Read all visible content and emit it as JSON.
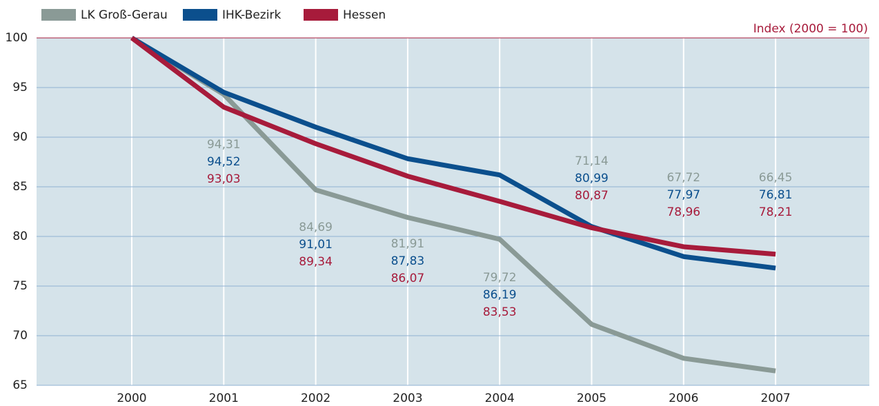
{
  "chart_data": {
    "type": "line",
    "annotation": "Index (2000 = 100)",
    "categories": [
      "2000",
      "2001",
      "2002",
      "2003",
      "2004",
      "2005",
      "2006",
      "2007"
    ],
    "series": [
      {
        "name": "LK Groß-Gerau",
        "color": "#8a9a96",
        "values": [
          100,
          94.31,
          84.69,
          81.91,
          79.72,
          71.14,
          67.72,
          66.45
        ],
        "value_labels": [
          null,
          "94,31",
          "84,69",
          "81,91",
          "79,72",
          "71,14",
          "67,72",
          "66,45"
        ]
      },
      {
        "name": "IHK-Bezirk",
        "color": "#0b4f8d",
        "values": [
          100,
          94.52,
          91.01,
          87.83,
          86.19,
          80.99,
          77.97,
          76.81
        ],
        "value_labels": [
          null,
          "94,52",
          "91,01",
          "87,83",
          "86,19",
          "80,99",
          "77,97",
          "76,81"
        ]
      },
      {
        "name": "Hessen",
        "color": "#a71b3b",
        "values": [
          100,
          93.03,
          89.34,
          86.07,
          83.53,
          80.87,
          78.96,
          78.21
        ],
        "value_labels": [
          null,
          "93,03",
          "89,34",
          "86,07",
          "83,53",
          "80,87",
          "78,96",
          "78,21"
        ]
      }
    ],
    "ylim": [
      65,
      100
    ],
    "yticks": [
      65,
      70,
      75,
      80,
      85,
      90,
      95,
      100
    ],
    "grid": true
  }
}
